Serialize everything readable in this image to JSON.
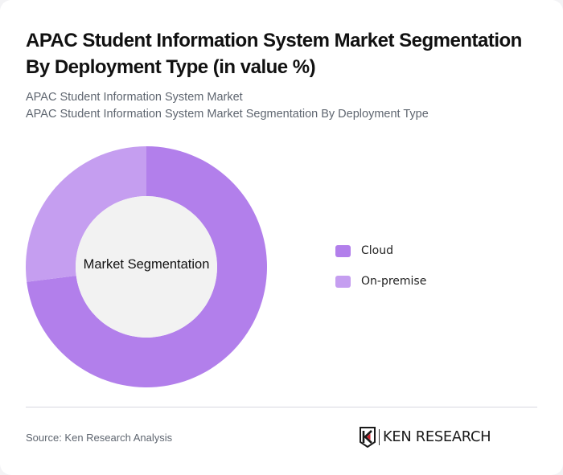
{
  "header": {
    "title": "APAC Student Information System Market Segmentation By Deployment Type (in value %)",
    "subtitle_line1": "APAC Student Information System Market",
    "subtitle_line2": "APAC Student Information System Market Segmentation By Deployment Type"
  },
  "chart": {
    "center_label": "Market Segmentation",
    "legend": [
      {
        "label": "Cloud",
        "color": "#b27feb"
      },
      {
        "label": "On-premise",
        "color": "#c59ef0"
      }
    ]
  },
  "footer": {
    "source": "Source: Ken Research Analysis",
    "logo_text": "KEN RESEARCH"
  },
  "chart_data": {
    "type": "pie",
    "subtype": "donut",
    "title": "APAC Student Information System Market Segmentation By Deployment Type (in value %)",
    "center_label": "Market Segmentation",
    "categories": [
      "Cloud",
      "On-premise"
    ],
    "values": [
      73,
      27
    ],
    "colors": [
      "#b27feb",
      "#c59ef0"
    ],
    "legend_position": "right",
    "start_angle": "12 o'clock, clockwise"
  }
}
